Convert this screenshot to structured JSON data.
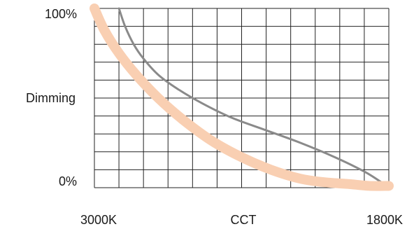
{
  "chart_data": {
    "type": "line",
    "title": "",
    "xlabel": "CCT",
    "ylabel": "Dimming",
    "x_tick_labels": [
      "3000K",
      "1800K"
    ],
    "y_tick_labels": [
      "100%",
      "0%"
    ],
    "xlim": [
      3000,
      1800
    ],
    "ylim": [
      0,
      100
    ],
    "grid": true,
    "x_grid_lines": 12,
    "y_grid_lines": 10,
    "colors": {
      "grid": "#222222",
      "series_gray": "#8a8a8a",
      "series_peach": "#f9cfb2"
    },
    "series": [
      {
        "color": "#8a8a8a",
        "x": [
          2900,
          2875,
          2840,
          2800,
          2740,
          2660,
          2560,
          2440,
          2300,
          2160,
          2020,
          1900,
          1830
        ],
        "y": [
          100,
          90,
          80,
          72,
          63,
          55,
          47,
          39,
          32,
          25,
          17,
          9,
          3
        ]
      },
      {
        "color": "#f9cfb2",
        "x": [
          3000,
          2960,
          2900,
          2830,
          2740,
          2640,
          2520,
          2400,
          2280,
          2160,
          2060,
          1960,
          1880,
          1800
        ],
        "y": [
          100,
          88,
          75,
          63,
          50,
          38,
          26,
          17,
          10,
          5,
          3,
          2,
          1,
          1
        ]
      }
    ]
  }
}
